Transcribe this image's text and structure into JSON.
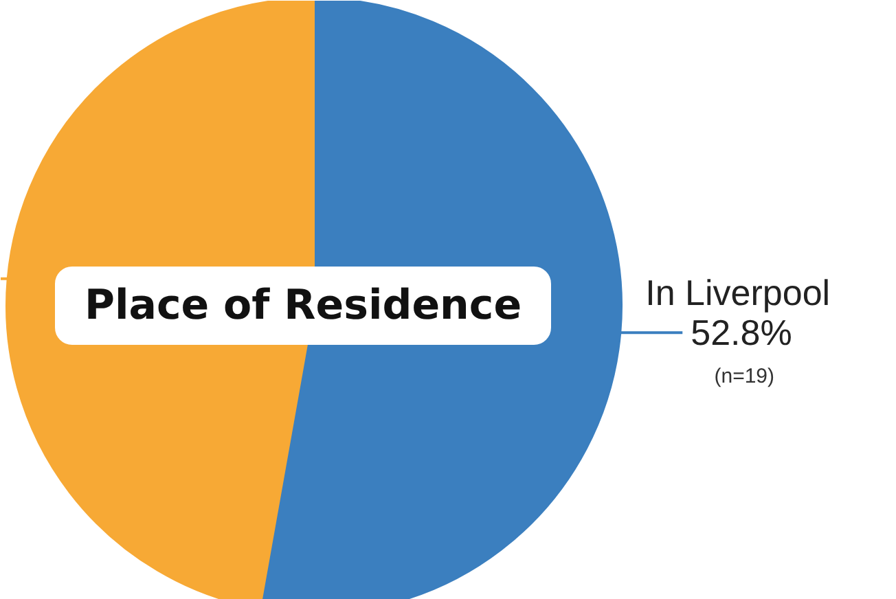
{
  "chart_data": {
    "type": "pie",
    "title": "Place of Residence",
    "categories": [
      "In Liverpool",
      null
    ],
    "values": [
      52.8,
      47.2
    ],
    "colors": [
      "#3b7fbf",
      "#f7a935"
    ],
    "value_labels": [
      "52.8%",
      null
    ],
    "annotations": [
      "(n=19)"
    ]
  }
}
